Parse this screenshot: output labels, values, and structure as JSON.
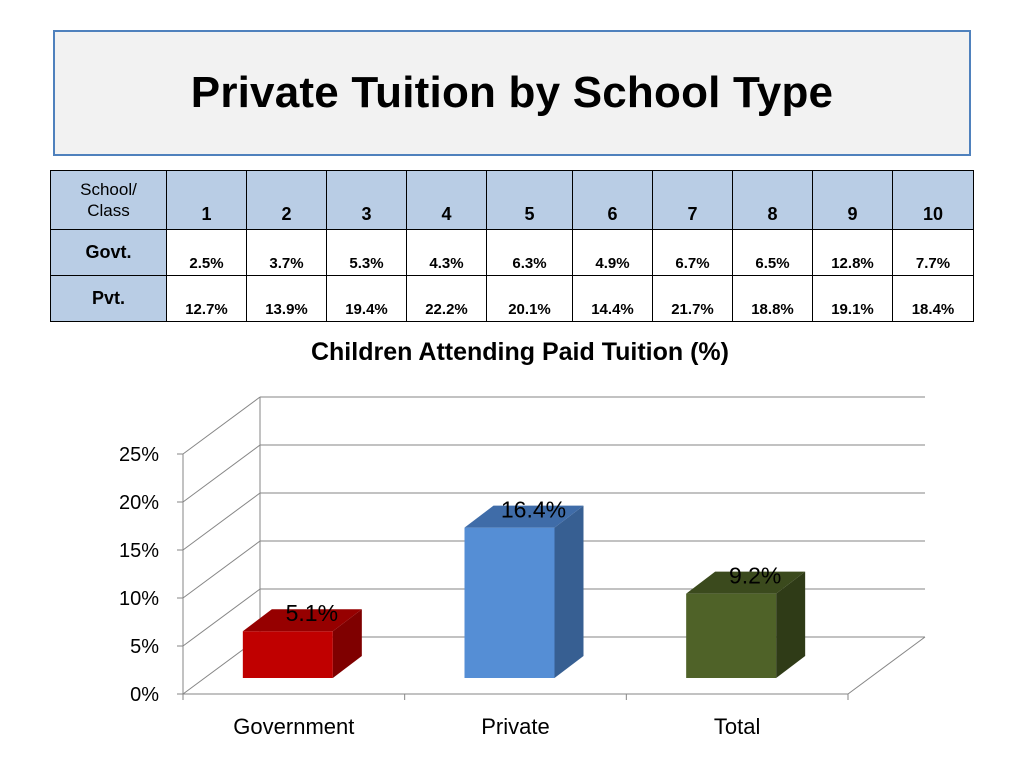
{
  "title": "Private Tuition by School Type",
  "table": {
    "corner_label_1": "School/",
    "corner_label_2": "Class",
    "classes": [
      "1",
      "2",
      "3",
      "4",
      "5",
      "6",
      "7",
      "8",
      "9",
      "10"
    ],
    "rows": [
      {
        "label": "Govt.",
        "values": [
          "2.5%",
          "3.7%",
          "5.3%",
          "4.3%",
          "6.3%",
          "4.9%",
          "6.7%",
          "6.5%",
          "12.8%",
          "7.7%"
        ]
      },
      {
        "label": "Pvt.",
        "values": [
          "12.7%",
          "13.9%",
          "19.4%",
          "22.2%",
          "20.1%",
          "14.4%",
          "21.7%",
          "18.8%",
          "19.1%",
          "18.4%"
        ]
      }
    ]
  },
  "chart_data": {
    "type": "bar",
    "title": "Children Attending Paid Tuition (%)",
    "categories": [
      "Government",
      "Private",
      "Total"
    ],
    "values": [
      5.1,
      16.4,
      9.2
    ],
    "data_labels": [
      "5.1%",
      "16.4%",
      "9.2%"
    ],
    "ylim": [
      0,
      25
    ],
    "yticks": [
      "0%",
      "5%",
      "10%",
      "15%",
      "20%",
      "25%"
    ],
    "grid": true,
    "three_d": true,
    "colors": {
      "Government": {
        "front": "#c00000",
        "side": "#7f0000",
        "top": "#960000"
      },
      "Private": {
        "front": "#558ed5",
        "side": "#375f92",
        "top": "#3f6ca8"
      },
      "Total": {
        "front": "#4f6228",
        "side": "#2f3b17",
        "top": "#3b4a1d"
      }
    }
  }
}
